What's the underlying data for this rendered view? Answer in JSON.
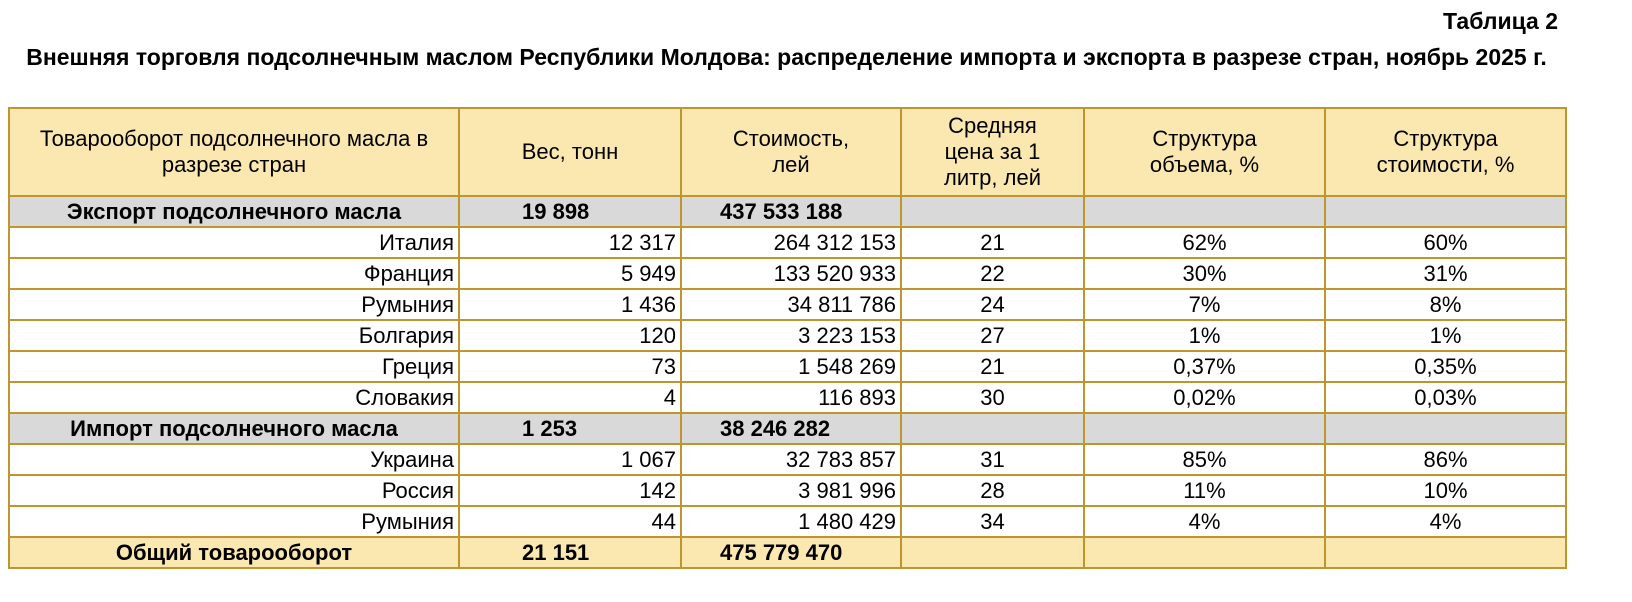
{
  "table_number": "Таблица 2",
  "title": "Внешняя торговля подсолнечным маслом Республики Молдова: распределение импорта и экспорта в разрезе стран, ноябрь 2025 г.",
  "headers": [
    "Товарооборот подсолнечного масла в разрезе стран",
    "Вес, тонн",
    "Стоимость, лей",
    "Средняя цена за 1 литр, лей",
    "Структура объема, %",
    "Структура стоимости, %"
  ],
  "rows": [
    {
      "type": "sub",
      "cells": [
        "Экспорт подсолнечного масла",
        "19 898",
        "437 533 188",
        "",
        "",
        ""
      ]
    },
    {
      "type": "row",
      "cells": [
        "Италия",
        "12 317",
        "264 312 153",
        "21",
        "62%",
        "60%"
      ]
    },
    {
      "type": "row",
      "cells": [
        "Франция",
        "5 949",
        "133 520 933",
        "22",
        "30%",
        "31%"
      ]
    },
    {
      "type": "row",
      "cells": [
        "Румыния",
        "1 436",
        "34 811 786",
        "24",
        "7%",
        "8%"
      ]
    },
    {
      "type": "row",
      "cells": [
        "Болгария",
        "120",
        "3 223 153",
        "27",
        "1%",
        "1%"
      ]
    },
    {
      "type": "row",
      "cells": [
        "Греция",
        "73",
        "1 548 269",
        "21",
        "0,37%",
        "0,35%"
      ]
    },
    {
      "type": "row",
      "cells": [
        "Словакия",
        "4",
        "116 893",
        "30",
        "0,02%",
        "0,03%"
      ]
    },
    {
      "type": "sub",
      "cells": [
        "Импорт подсолнечного масла",
        "1 253",
        "38 246 282",
        "",
        "",
        ""
      ]
    },
    {
      "type": "row",
      "cells": [
        "Украина",
        "1 067",
        "32 783 857",
        "31",
        "85%",
        "86%"
      ]
    },
    {
      "type": "row",
      "cells": [
        "Россия",
        "142",
        "3 981 996",
        "28",
        "11%",
        "10%"
      ]
    },
    {
      "type": "row",
      "cells": [
        "Румыния",
        "44",
        "1 480 429",
        "34",
        "4%",
        "4%"
      ]
    },
    {
      "type": "tot",
      "cells": [
        "Общий товарооборот",
        "21 151",
        "475 779 470",
        "",
        "",
        ""
      ]
    }
  ]
}
